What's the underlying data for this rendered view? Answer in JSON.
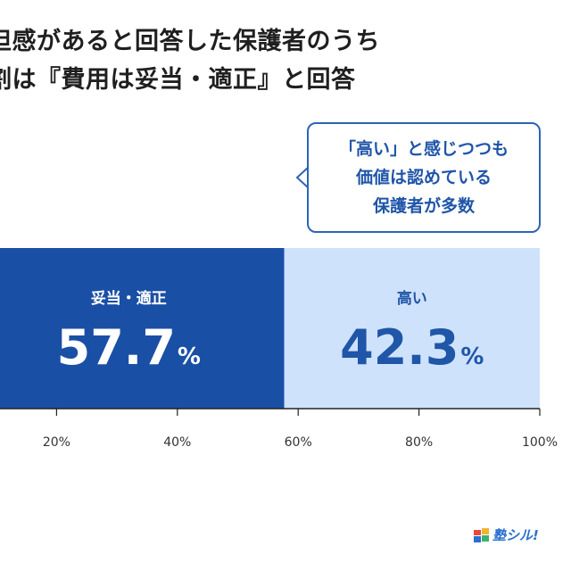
{
  "title": {
    "line1": "担感があると回答した保護者のうち",
    "line2": "割は『費用は妥当・適正』と回答"
  },
  "callout": {
    "lines": [
      "「高い」と感じつつも",
      "価値は認めている",
      "保護者が多数"
    ]
  },
  "colors": {
    "primary": "#1a4fa6",
    "secondary": "#cfe2fb",
    "secondary_text": "#1f56a8",
    "callout_border": "#2c64b8"
  },
  "chart_data": {
    "type": "bar",
    "orientation": "horizontal-stacked-100",
    "series": [
      {
        "name": "妥当・適正",
        "value": 57.7,
        "value_text": "57.7",
        "unit": "%"
      },
      {
        "name": "高い",
        "value": 42.3,
        "value_text": "42.3",
        "unit": "%"
      }
    ],
    "xlim": [
      0,
      100
    ],
    "ticks": [
      {
        "value": 20,
        "label": "20%"
      },
      {
        "value": 40,
        "label": "40%"
      },
      {
        "value": 60,
        "label": "60%"
      },
      {
        "value": 80,
        "label": "80%"
      },
      {
        "value": 100,
        "label": "100%"
      }
    ],
    "grid": false,
    "legend": "none"
  },
  "logo": {
    "text": "塾シル!"
  }
}
